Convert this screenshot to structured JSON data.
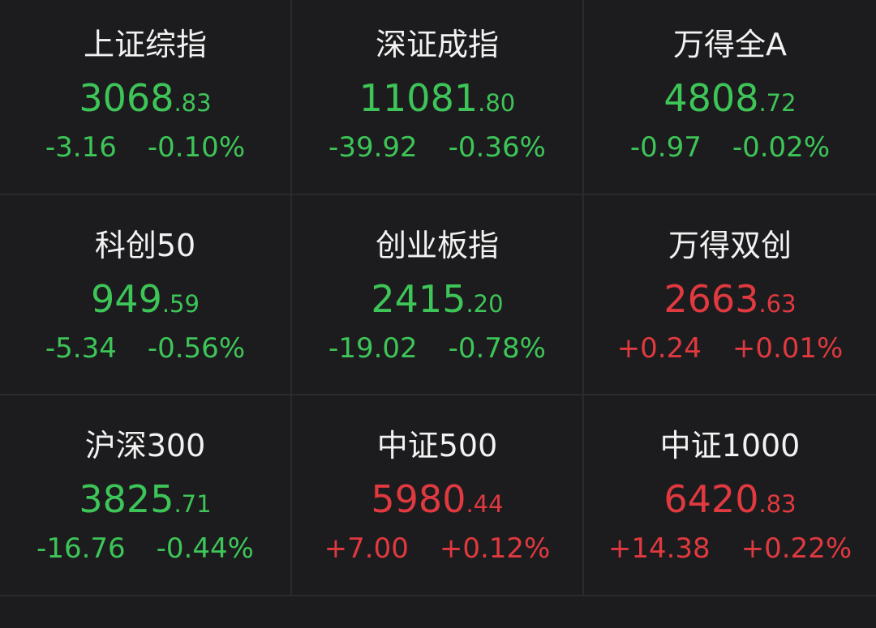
{
  "colors": {
    "down": "#3dc558",
    "up": "#e0393f",
    "background": "#1c1c1e"
  },
  "indices": [
    {
      "name": "上证综指",
      "int": "3068",
      "dec": ".83",
      "change": "-3.16",
      "pct": "-0.10%",
      "dir": "down"
    },
    {
      "name": "深证成指",
      "int": "11081",
      "dec": ".80",
      "change": "-39.92",
      "pct": "-0.36%",
      "dir": "down"
    },
    {
      "name": "万得全A",
      "int": "4808",
      "dec": ".72",
      "change": "-0.97",
      "pct": "-0.02%",
      "dir": "down"
    },
    {
      "name": "科创50",
      "int": "949",
      "dec": ".59",
      "change": "-5.34",
      "pct": "-0.56%",
      "dir": "down"
    },
    {
      "name": "创业板指",
      "int": "2415",
      "dec": ".20",
      "change": "-19.02",
      "pct": "-0.78%",
      "dir": "down"
    },
    {
      "name": "万得双创",
      "int": "2663",
      "dec": ".63",
      "change": "+0.24",
      "pct": "+0.01%",
      "dir": "up"
    },
    {
      "name": "沪深300",
      "int": "3825",
      "dec": ".71",
      "change": "-16.76",
      "pct": "-0.44%",
      "dir": "down"
    },
    {
      "name": "中证500",
      "int": "5980",
      "dec": ".44",
      "change": "+7.00",
      "pct": "+0.12%",
      "dir": "up"
    },
    {
      "name": "中证1000",
      "int": "6420",
      "dec": ".83",
      "change": "+14.38",
      "pct": "+0.22%",
      "dir": "up"
    }
  ]
}
